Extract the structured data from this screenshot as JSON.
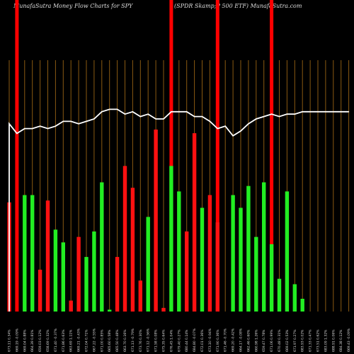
{
  "header": {
    "left": "MunafaSutra  Money Flow  Charts for SPY",
    "right": "(SPDR Skamp;P 500   ETF)  MunafaSutra.com"
  },
  "colors": {
    "background": "#000000",
    "up": "#22ee22",
    "down": "#ff1111",
    "highlight": "#ff0000",
    "gridline": "#8a5a12",
    "price_line": "#ffffff",
    "text": "#dddddd"
  },
  "chart_data": {
    "type": "bar",
    "categories": [
      "673.11 0.34%",
      "669.19 -0.09%",
      "669.04 0.88%",
      "664.39 0.81%",
      "659.03 0.12%",
      "658.69 0.32%",
      "671.40 -0.37%",
      "671.86 0.63%",
      "663.69 1.11%",
      "669.21 -0.43%",
      "672.04 0.71%",
      "667.22 -0.55%",
      "671.00 0.85%",
      "665.60 0.58%",
      "665.50 0.48%",
      "663.70 0.16%",
      "671.13 -0.79%",
      "673.76 0.30%",
      "671.12 -0.56%",
      "671.58 0.08%",
      "675.35 0.64%",
      "676.45 1.04%",
      "679.40 0.27%",
      "680.44 0.14%",
      "684.80 -0.07%",
      "672.01 0.36%",
      "673.10 -0.94%",
      "671.90 0.36%",
      "671.46 -0.70%",
      "669.20 -0.42%",
      "664.17 -0.08%",
      "662.46 0.60%",
      "660.98 1.26%",
      "659.47 0.78%",
      "671.06 0.99%",
      "670.48 0.31%",
      "669.02 0.53%",
      "671.97 0.27%",
      "683.93 0.02%",
      "671.33 0.47%",
      "673.51 0.62%",
      "683.09 1.32%",
      "688.91 0.06%",
      "684.38 0.12%",
      "669.43 -0.09%"
    ],
    "series": [
      {
        "values": [
          60,
          0,
          64,
          64,
          23,
          61,
          45,
          38,
          6,
          41,
          30,
          44,
          71,
          1,
          30,
          80,
          68,
          17,
          52,
          100,
          2,
          80,
          66,
          44,
          98,
          57,
          64,
          49,
          0,
          64,
          57,
          69,
          41,
          71,
          37,
          18,
          66,
          15,
          7,
          0,
          0,
          0,
          0,
          0,
          0
        ],
        "directions": [
          "down",
          "down",
          "up",
          "up",
          "down",
          "down",
          "up",
          "up",
          "down",
          "down",
          "up",
          "up",
          "up",
          "up",
          "down",
          "down",
          "down",
          "down",
          "up",
          "down",
          "down",
          "up",
          "up",
          "down",
          "down",
          "up",
          "down",
          "down",
          "down",
          "up",
          "up",
          "up",
          "up",
          "up",
          "up",
          "up",
          "up",
          "up",
          "up",
          "up",
          "up",
          "up",
          "up",
          "up",
          "up"
        ]
      },
      {
        "type": "line",
        "values": [
          78,
          74,
          76,
          76,
          77,
          76,
          77,
          79,
          79,
          78,
          79,
          80,
          83,
          84,
          84,
          82,
          83,
          81,
          82,
          80,
          80,
          83,
          83,
          83,
          81,
          81,
          79,
          76,
          77,
          73,
          75,
          78,
          80,
          81,
          82,
          81,
          82,
          82,
          83,
          83,
          83,
          83,
          83,
          83,
          83
        ]
      }
    ],
    "highlight_indices": [
      1,
      21,
      27,
      34
    ],
    "ylim": [
      0,
      100
    ]
  }
}
